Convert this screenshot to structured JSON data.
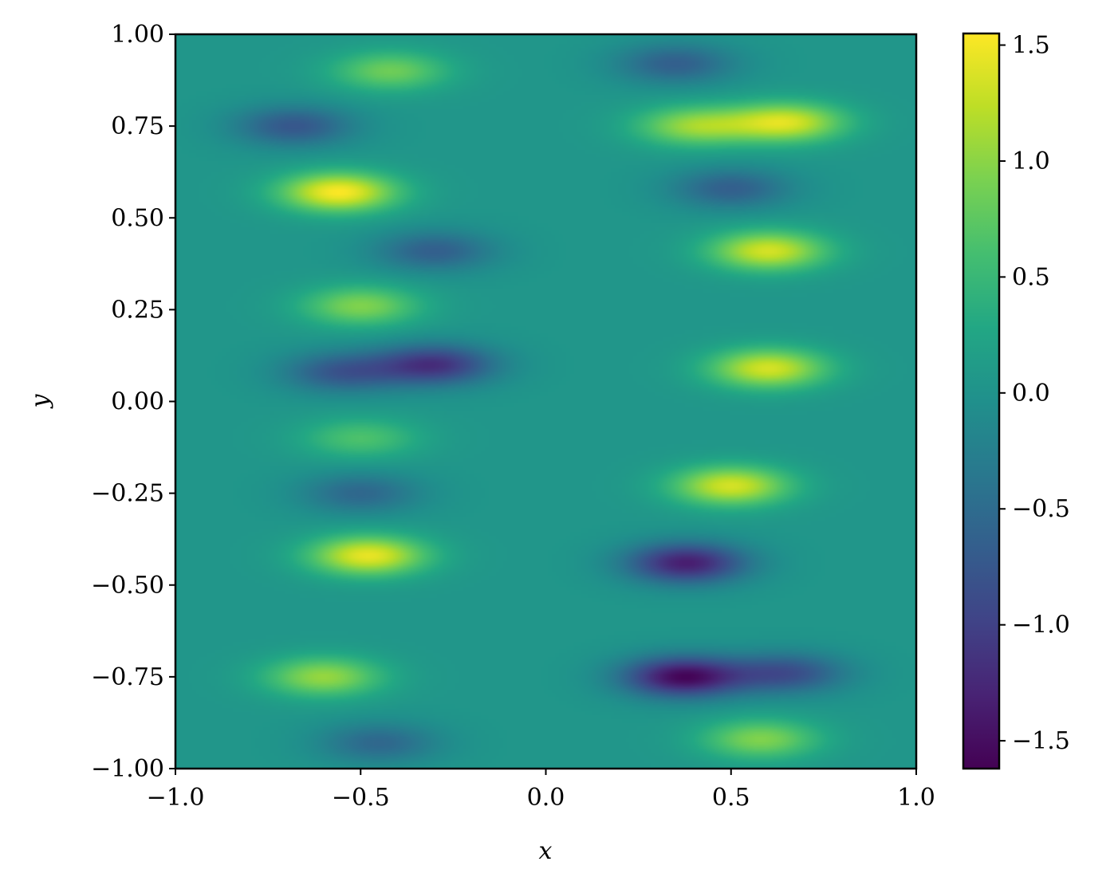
{
  "chart_data": {
    "type": "heatmap",
    "title": "",
    "xlabel": "x",
    "ylabel": "y",
    "xlim": [
      -1.0,
      1.0
    ],
    "ylim": [
      -1.0,
      1.0
    ],
    "x_ticks": [
      -1.0,
      -0.5,
      0.0,
      0.5,
      1.0
    ],
    "x_tick_labels": [
      "−1.0",
      "−0.5",
      "0.0",
      "0.5",
      "1.0"
    ],
    "y_ticks": [
      -1.0,
      -0.75,
      -0.5,
      -0.25,
      0.0,
      0.25,
      0.5,
      0.75,
      1.0
    ],
    "y_tick_labels": [
      "−1.00",
      "−0.75",
      "−0.50",
      "−0.25",
      "0.00",
      "0.25",
      "0.50",
      "0.75",
      "1.00"
    ],
    "colormap": "viridis",
    "colorbar": {
      "range": [
        -1.62,
        1.55
      ],
      "ticks": [
        -1.5,
        -1.0,
        -0.5,
        0.0,
        0.5,
        1.0,
        1.5
      ],
      "tick_labels": [
        "−1.5",
        "−1.0",
        "−0.5",
        "0.0",
        "0.5",
        "1.0",
        "1.5"
      ]
    },
    "grid": false,
    "features": [
      {
        "x": -0.56,
        "y": 0.57,
        "value": 1.5
      },
      {
        "x": -0.42,
        "y": 0.9,
        "value": 0.8
      },
      {
        "x": -0.68,
        "y": 0.75,
        "value": -0.8
      },
      {
        "x": -0.5,
        "y": 0.26,
        "value": 0.9
      },
      {
        "x": -0.3,
        "y": 0.41,
        "value": -0.7
      },
      {
        "x": -0.3,
        "y": 0.1,
        "value": -1.2
      },
      {
        "x": -0.55,
        "y": 0.08,
        "value": -0.8
      },
      {
        "x": -0.5,
        "y": -0.1,
        "value": 0.6
      },
      {
        "x": -0.5,
        "y": -0.25,
        "value": -0.6
      },
      {
        "x": -0.48,
        "y": -0.42,
        "value": 1.4
      },
      {
        "x": -0.6,
        "y": -0.75,
        "value": 1.0
      },
      {
        "x": -0.45,
        "y": -0.93,
        "value": -0.6
      },
      {
        "x": 0.65,
        "y": 0.76,
        "value": 1.3
      },
      {
        "x": 0.4,
        "y": 0.75,
        "value": 1.0
      },
      {
        "x": 0.35,
        "y": 0.92,
        "value": -0.7
      },
      {
        "x": 0.5,
        "y": 0.58,
        "value": -0.7
      },
      {
        "x": 0.6,
        "y": 0.41,
        "value": 1.3
      },
      {
        "x": 0.6,
        "y": 0.09,
        "value": 1.3
      },
      {
        "x": 0.5,
        "y": -0.23,
        "value": 1.3
      },
      {
        "x": 0.38,
        "y": -0.44,
        "value": -1.4
      },
      {
        "x": 0.37,
        "y": -0.75,
        "value": -1.6
      },
      {
        "x": 0.65,
        "y": -0.74,
        "value": -0.9
      },
      {
        "x": 0.58,
        "y": -0.92,
        "value": 0.9
      }
    ],
    "value_range": [
      -1.62,
      1.55
    ]
  }
}
